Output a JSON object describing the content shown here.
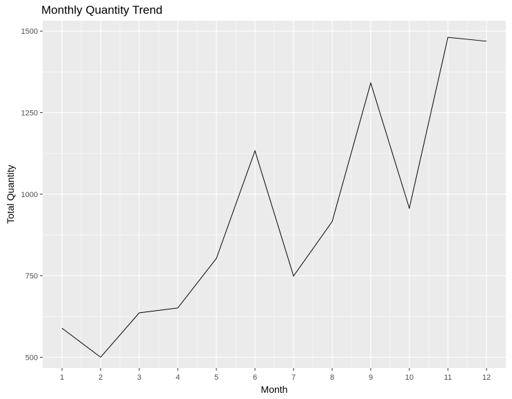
{
  "chart_data": {
    "type": "line",
    "title": "Monthly Quantity Trend",
    "xlabel": "Month",
    "ylabel": "Total Quantity",
    "x": [
      1,
      2,
      3,
      4,
      5,
      6,
      7,
      8,
      9,
      10,
      11,
      12
    ],
    "x_ticks": [
      "1",
      "2",
      "3",
      "4",
      "5",
      "6",
      "7",
      "8",
      "9",
      "10",
      "11",
      "12"
    ],
    "series": [
      {
        "values": [
          589,
          500,
          636,
          651,
          803,
          1133,
          749,
          916,
          1341,
          957,
          1481,
          1469
        ]
      }
    ],
    "y_ticks": [
      500,
      750,
      1000,
      1250,
      1500
    ],
    "y_tick_labels": [
      "500",
      "750",
      "1000",
      "1250",
      "1500"
    ],
    "xlim": [
      0.5,
      12.5
    ],
    "ylim": [
      467,
      1532
    ],
    "grid": true,
    "colors": {
      "panel": "#EBEBEB",
      "grid": "#FFFFFF",
      "line": "#000000",
      "tick_text": "#4D4D4D",
      "tick_mark": "#333333"
    }
  }
}
